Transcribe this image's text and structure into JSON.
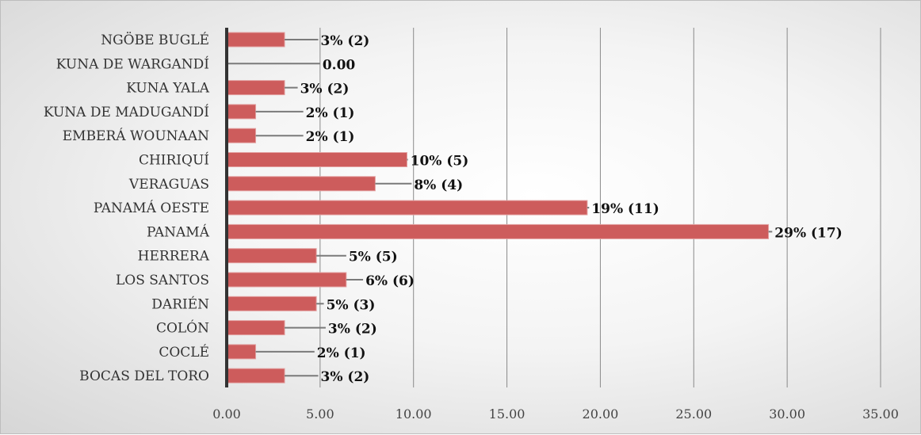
{
  "chart_data": {
    "type": "bar",
    "orientation": "horizontal",
    "categories": [
      "NGÖBE BUGLÉ",
      "KUNA DE WARGANDÍ",
      "KUNA YALA",
      "KUNA DE MADUGANDÍ",
      "EMBERÁ WOUNAAN",
      "CHIRIQUÍ",
      "VERAGUAS",
      "PANAMÁ OESTE",
      "PANAMÁ",
      "HERRERA",
      "LOS SANTOS",
      "DARIÉN",
      "COLÓN ",
      "COCLÉ",
      "BOCAS DEL TORO"
    ],
    "values": [
      3.1,
      0,
      3.1,
      1.55,
      1.55,
      9.65,
      7.95,
      19.3,
      29.0,
      4.8,
      6.4,
      4.8,
      3.1,
      1.55,
      3.1
    ],
    "data_labels": [
      "3% (2)",
      "0.00",
      "3% (2)",
      "2% (1)",
      "2% (1)",
      "10% (5)",
      "8% (4)",
      "19% (11)",
      "29% (17)",
      "5% (5)",
      "6% (6)",
      "5% (3)",
      "3% (2)",
      "2% (1)",
      "3%  (2)"
    ],
    "leader_end_values": [
      4.9,
      5.0,
      3.8,
      4.1,
      4.1,
      9.7,
      9.9,
      19.4,
      29.2,
      6.4,
      7.3,
      5.2,
      5.3,
      4.7,
      4.9
    ],
    "xlim": [
      0,
      35
    ],
    "xticks": [
      "0.00",
      "5.00",
      "10.00",
      "15.00",
      "20.00",
      "25.00",
      "30.00",
      "35.00"
    ],
    "title": "",
    "xlabel": "",
    "ylabel": "",
    "grid": "vertical",
    "legend": "none",
    "colors": {
      "bar": "#cd5c5c",
      "bar_edge": "#e3a0a0",
      "grid": "#8a8a8a",
      "axis": "#333333",
      "leader": "#7a7a7a"
    }
  }
}
